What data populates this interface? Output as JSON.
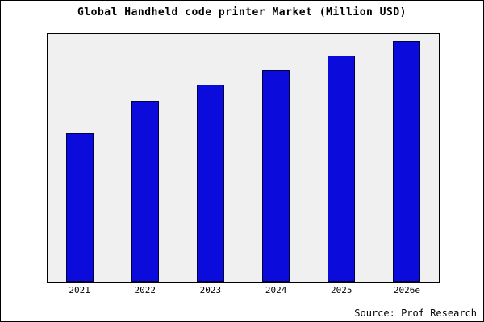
{
  "title": "Global Handheld code printer Market (Million USD)",
  "source": "Source: Prof Research",
  "colors": {
    "bar_fill": "#0b0bdb",
    "bar_edge": "#000040",
    "plot_bg": "#f0f0f0",
    "figure_border": "#000000"
  },
  "chart_data": {
    "type": "bar",
    "categories": [
      "2021",
      "2022",
      "2023",
      "2024",
      "2025",
      "2026e"
    ],
    "values": [
      62,
      75,
      82,
      88,
      94,
      100
    ],
    "title": "Global Handheld code printer Market (Million USD)",
    "xlabel": "",
    "ylabel": "",
    "ylim": [
      0,
      103
    ],
    "grid": false,
    "legend_position": "none",
    "annotation": "Source: Prof Research"
  }
}
